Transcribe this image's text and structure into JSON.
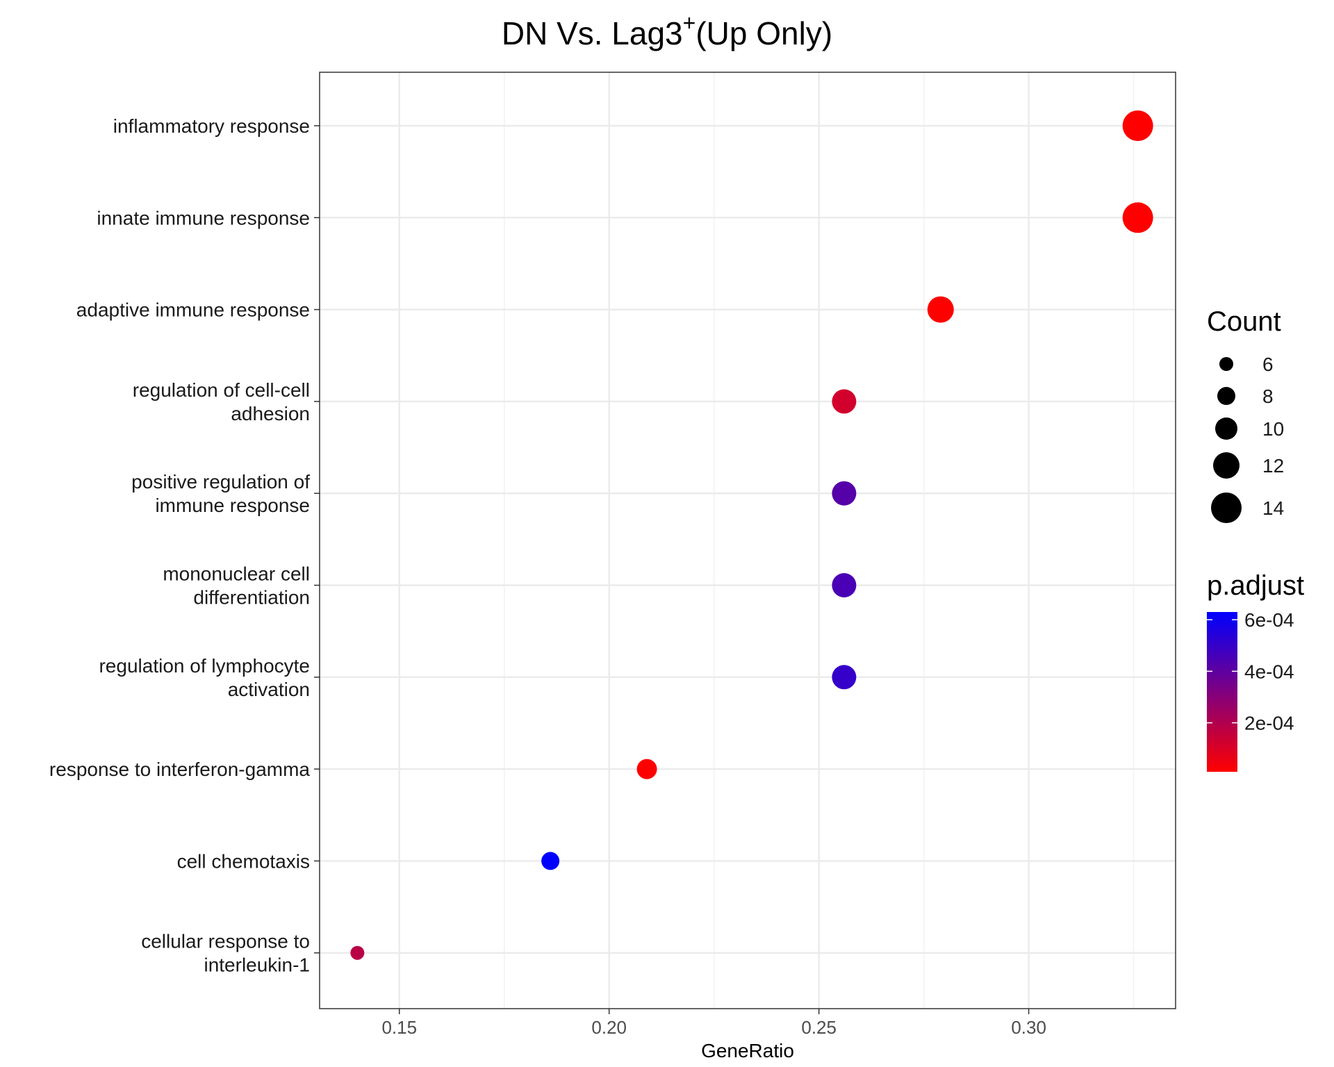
{
  "chart_data": {
    "type": "scatter",
    "title": "DN Vs. Lag3",
    "title_superscript": "+",
    "title_suffix": "(Up Only)",
    "xlabel": "GeneRatio",
    "ylabel": "",
    "xlim": [
      0.131,
      0.335
    ],
    "x_ticks": [
      0.15,
      0.2,
      0.25,
      0.3
    ],
    "x_tick_labels": [
      "0.15",
      "0.20",
      "0.25",
      "0.30"
    ],
    "grid": true,
    "categories": [
      {
        "lines": [
          "inflammatory response"
        ]
      },
      {
        "lines": [
          "innate immune response"
        ]
      },
      {
        "lines": [
          "adaptive immune response"
        ]
      },
      {
        "lines": [
          "regulation of cell-cell",
          "adhesion"
        ]
      },
      {
        "lines": [
          "positive regulation of",
          "immune response"
        ]
      },
      {
        "lines": [
          "mononuclear cell",
          "differentiation"
        ]
      },
      {
        "lines": [
          "regulation of lymphocyte",
          "activation"
        ]
      },
      {
        "lines": [
          "response to interferon-gamma"
        ]
      },
      {
        "lines": [
          "cell chemotaxis"
        ]
      },
      {
        "lines": [
          "cellular response to",
          "interleukin-1"
        ]
      }
    ],
    "points": [
      {
        "category": "inflammatory response",
        "gene_ratio": 0.326,
        "count": 14,
        "p_adjust": 1e-05
      },
      {
        "category": "innate immune response",
        "gene_ratio": 0.326,
        "count": 14,
        "p_adjust": 1e-05
      },
      {
        "category": "adaptive immune response",
        "gene_ratio": 0.279,
        "count": 12,
        "p_adjust": 1e-05
      },
      {
        "category": "regulation of cell-cell adhesion",
        "gene_ratio": 0.256,
        "count": 11,
        "p_adjust": 0.00012
      },
      {
        "category": "positive regulation of immune response",
        "gene_ratio": 0.256,
        "count": 11,
        "p_adjust": 0.00042
      },
      {
        "category": "mononuclear cell differentiation",
        "gene_ratio": 0.256,
        "count": 11,
        "p_adjust": 0.00045
      },
      {
        "category": "regulation of lymphocyte activation",
        "gene_ratio": 0.256,
        "count": 11,
        "p_adjust": 0.0005
      },
      {
        "category": "response to interferon-gamma",
        "gene_ratio": 0.209,
        "count": 9,
        "p_adjust": 1e-05
      },
      {
        "category": "cell chemotaxis",
        "gene_ratio": 0.186,
        "count": 8,
        "p_adjust": 0.00063
      },
      {
        "category": "cellular response to interleukin-1",
        "gene_ratio": 0.14,
        "count": 6,
        "p_adjust": 0.00018
      }
    ],
    "size_legend": {
      "title": "Count",
      "values": [
        6,
        8,
        10,
        12,
        14
      ],
      "labels": [
        "6",
        "8",
        "10",
        "12",
        "14"
      ]
    },
    "color_legend": {
      "title": "p.adjust",
      "range": [
        1e-05,
        0.00063
      ],
      "ticks": [
        0.0006,
        0.0004,
        0.0002
      ],
      "labels": [
        "6e-04",
        "4e-04",
        "2e-04"
      ],
      "low_color": "#FF0000",
      "high_color": "#0000FF"
    }
  }
}
